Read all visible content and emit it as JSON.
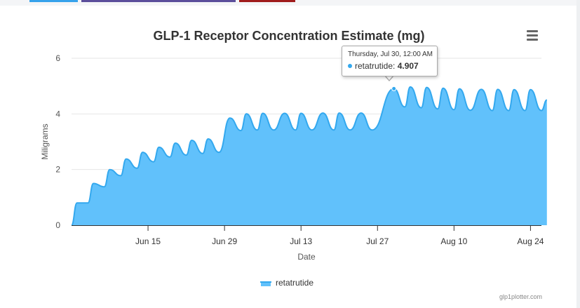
{
  "colors": {
    "top_btn_1": "#36a2eb",
    "top_btn_2": "#5b4e9b",
    "top_btn_3": "#a01c1c",
    "series_fill": "#61c1fb",
    "series_line": "#33a8ee",
    "grid": "#e6e6e6",
    "axis": "#333333"
  },
  "menu": {
    "icon": "hamburger-menu-icon"
  },
  "tooltip": {
    "date": "Thursday, Jul 30, 12:00 AM",
    "series": "retatrutide",
    "value": "4.907"
  },
  "legend": {
    "label": "retatrutide"
  },
  "credits": "glp1plotter.com",
  "chart_data": {
    "type": "area",
    "title": "GLP-1 Receptor Concentration Estimate (mg)",
    "xlabel": "Date",
    "ylabel": "Miligrams",
    "ylim": [
      0,
      6
    ],
    "yticks": [
      "0",
      "2",
      "4",
      "6"
    ],
    "xlim": [
      "2024-06-01",
      "2024-08-26"
    ],
    "xticks": [
      {
        "date": "2024-06-15",
        "label": "Jun 15"
      },
      {
        "date": "2024-06-29",
        "label": "Jun 29"
      },
      {
        "date": "2024-07-13",
        "label": "Jul 13"
      },
      {
        "date": "2024-07-27",
        "label": "Jul 27"
      },
      {
        "date": "2024-08-10",
        "label": "Aug 10"
      },
      {
        "date": "2024-08-24",
        "label": "Aug 24"
      }
    ],
    "grid": true,
    "legend_position": "bottom-center",
    "series": [
      {
        "name": "retatrutide",
        "points": [
          [
            "2024-06-01",
            0.0
          ],
          [
            "2024-06-02",
            0.8
          ],
          [
            "2024-06-04",
            0.8
          ],
          [
            "2024-06-05",
            1.5
          ],
          [
            "2024-06-07",
            1.38
          ],
          [
            "2024-06-08",
            2.0
          ],
          [
            "2024-06-10",
            1.78
          ],
          [
            "2024-06-11",
            2.38
          ],
          [
            "2024-06-13",
            2.05
          ],
          [
            "2024-06-14",
            2.62
          ],
          [
            "2024-06-16",
            2.28
          ],
          [
            "2024-06-17",
            2.8
          ],
          [
            "2024-06-19",
            2.45
          ],
          [
            "2024-06-20",
            2.95
          ],
          [
            "2024-06-22",
            2.52
          ],
          [
            "2024-06-23",
            3.05
          ],
          [
            "2024-06-25",
            2.58
          ],
          [
            "2024-06-26",
            3.1
          ],
          [
            "2024-06-28",
            2.62
          ],
          [
            "2024-06-30",
            3.85
          ],
          [
            "2024-07-02",
            3.4
          ],
          [
            "2024-07-03",
            4.0
          ],
          [
            "2024-07-05",
            3.42
          ],
          [
            "2024-07-06",
            4.02
          ],
          [
            "2024-07-08",
            3.42
          ],
          [
            "2024-07-10",
            4.02
          ],
          [
            "2024-07-12",
            3.42
          ],
          [
            "2024-07-13",
            4.02
          ],
          [
            "2024-07-15",
            3.42
          ],
          [
            "2024-07-17",
            4.03
          ],
          [
            "2024-07-19",
            3.42
          ],
          [
            "2024-07-20",
            4.03
          ],
          [
            "2024-07-22",
            3.42
          ],
          [
            "2024-07-24",
            4.03
          ],
          [
            "2024-07-26",
            3.42
          ],
          [
            "2024-07-30",
            4.907
          ],
          [
            "2024-08-01",
            4.25
          ],
          [
            "2024-08-02",
            4.97
          ],
          [
            "2024-08-04",
            4.22
          ],
          [
            "2024-08-05",
            4.95
          ],
          [
            "2024-08-07",
            4.18
          ],
          [
            "2024-08-08",
            4.92
          ],
          [
            "2024-08-10",
            4.15
          ],
          [
            "2024-08-11",
            4.9
          ],
          [
            "2024-08-13",
            4.13
          ],
          [
            "2024-08-15",
            4.88
          ],
          [
            "2024-08-17",
            4.12
          ],
          [
            "2024-08-18",
            4.88
          ],
          [
            "2024-08-20",
            4.12
          ],
          [
            "2024-08-21",
            4.87
          ],
          [
            "2024-08-23",
            4.12
          ],
          [
            "2024-08-24",
            4.87
          ],
          [
            "2024-08-26",
            4.12
          ],
          [
            "2024-08-27",
            4.5
          ]
        ]
      }
    ],
    "highlight": {
      "date": "2024-07-30",
      "value": 4.907
    }
  }
}
